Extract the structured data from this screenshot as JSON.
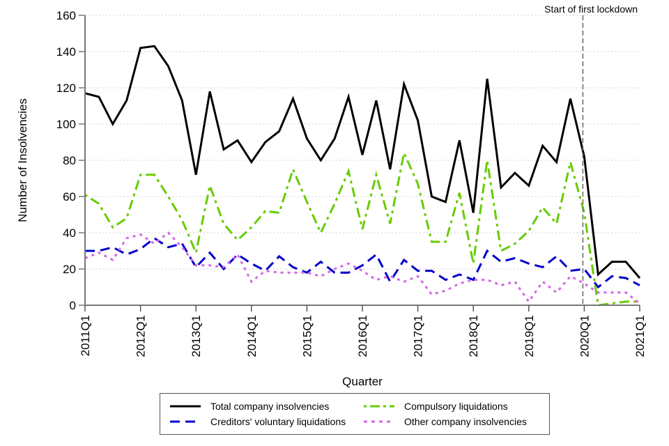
{
  "chart_data": {
    "type": "line",
    "title": "",
    "xlabel": "Quarter",
    "ylabel": "Number of Insolvencies",
    "ylim": [
      0,
      160
    ],
    "yticks": [
      0,
      20,
      40,
      60,
      80,
      100,
      120,
      140,
      160
    ],
    "grid": "horizontal-dotted",
    "x": [
      "2011Q1",
      "2011Q2",
      "2011Q3",
      "2011Q4",
      "2012Q1",
      "2012Q2",
      "2012Q3",
      "2012Q4",
      "2013Q1",
      "2013Q2",
      "2013Q3",
      "2013Q4",
      "2014Q1",
      "2014Q2",
      "2014Q3",
      "2014Q4",
      "2015Q1",
      "2015Q2",
      "2015Q3",
      "2015Q4",
      "2016Q1",
      "2016Q2",
      "2016Q3",
      "2016Q4",
      "2017Q1",
      "2017Q2",
      "2017Q3",
      "2017Q4",
      "2018Q1",
      "2018Q2",
      "2018Q3",
      "2018Q4",
      "2019Q1",
      "2019Q2",
      "2019Q3",
      "2019Q4",
      "2020Q1",
      "2020Q2",
      "2020Q3",
      "2020Q4",
      "2021Q1"
    ],
    "xtick_labels": [
      "2011Q1",
      "2012Q1",
      "2013Q1",
      "2014Q1",
      "2015Q1",
      "2016Q1",
      "2017Q1",
      "2018Q1",
      "2019Q1",
      "2020Q1",
      "2021Q1"
    ],
    "series": [
      {
        "name": "Total company insolvencies",
        "color": "#000000",
        "style": "solid",
        "values": [
          117,
          115,
          100,
          113,
          142,
          143,
          132,
          113,
          72,
          118,
          86,
          91,
          79,
          90,
          96,
          114,
          92,
          80,
          92,
          115,
          83,
          113,
          75,
          122,
          102,
          60,
          57,
          91,
          51,
          125,
          65,
          73,
          66,
          88,
          79,
          114,
          82,
          17,
          24,
          24,
          15
        ]
      },
      {
        "name": "Creditors' voluntary liquidations",
        "color": "#0000CC",
        "style": "dashed",
        "values": [
          30,
          30,
          32,
          28,
          31,
          37,
          32,
          34,
          21,
          29,
          20,
          28,
          23,
          19,
          27,
          21,
          18,
          24,
          18,
          18,
          22,
          28,
          13,
          25,
          19,
          19,
          14,
          17,
          14,
          30,
          24,
          26,
          23,
          21,
          27,
          19,
          20,
          10,
          16,
          15,
          11
        ]
      },
      {
        "name": "Compulsory liquidations",
        "color": "#66CC00",
        "style": "dashdot",
        "values": [
          61,
          56,
          43,
          48,
          72,
          72,
          60,
          47,
          29,
          66,
          45,
          36,
          43,
          52,
          51,
          75,
          57,
          40,
          56,
          74,
          42,
          72,
          45,
          84,
          67,
          35,
          35,
          62,
          23,
          80,
          30,
          34,
          41,
          54,
          45,
          79,
          51,
          0,
          1,
          2,
          2
        ]
      },
      {
        "name": "Other company insolvencies",
        "color": "#D466E6",
        "style": "dotted",
        "values": [
          26,
          29,
          25,
          37,
          39,
          34,
          40,
          32,
          22,
          22,
          21,
          28,
          13,
          19,
          18,
          18,
          18,
          16,
          20,
          23,
          19,
          14,
          16,
          13,
          16,
          6,
          8,
          12,
          14,
          14,
          11,
          13,
          2,
          13,
          7,
          16,
          12,
          7,
          7,
          7,
          1
        ]
      }
    ],
    "annotations": [
      {
        "text": "Start of first lockdown",
        "x": "2020Q1",
        "type": "vertical-dashed-line"
      }
    ],
    "legend": {
      "placement": "bottom",
      "columns": 2
    }
  }
}
